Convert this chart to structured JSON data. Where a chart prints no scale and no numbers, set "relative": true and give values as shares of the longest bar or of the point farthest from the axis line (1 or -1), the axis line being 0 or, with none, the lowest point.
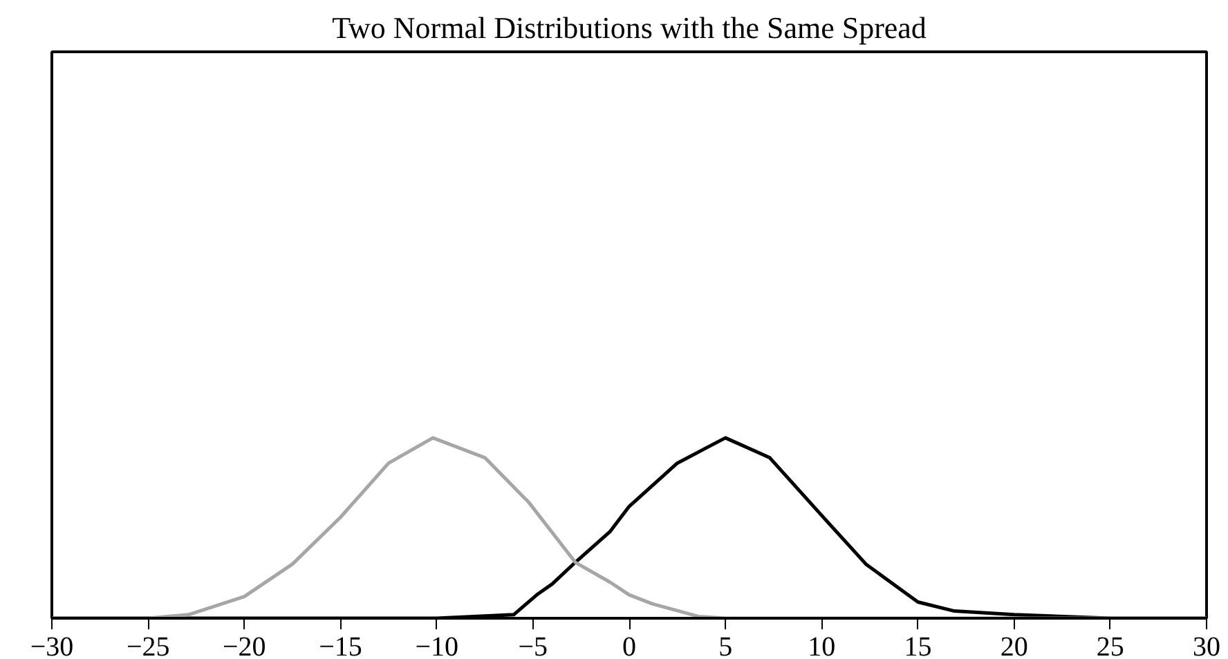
{
  "chart_data": {
    "type": "line",
    "title": "Two Normal Distributions with the Same Spread",
    "relative": true,
    "grid": false,
    "tick_labels": "x",
    "marker": "none",
    "line_style": "solid",
    "xlim": [
      -30,
      30
    ],
    "xticks": [
      {
        "value": -30,
        "label": "−30"
      },
      {
        "value": -25,
        "label": "−25"
      },
      {
        "value": -20,
        "label": "−20"
      },
      {
        "value": -15,
        "label": "−15"
      },
      {
        "value": -10,
        "label": "−10"
      },
      {
        "value": -5,
        "label": "−5"
      },
      0,
      5,
      10,
      15,
      20,
      25,
      30
    ],
    "series": [
      {
        "color": "#000000",
        "x": [
          -30,
          -10,
          -6,
          -4.8,
          -4,
          -2.8,
          -1,
          0,
          2.5,
          5,
          7.3,
          10,
          12.3,
          15,
          16.9,
          20,
          25,
          30
        ],
        "values": [
          0,
          0,
          0.02,
          0.13,
          0.19,
          0.31,
          0.48,
          0.62,
          0.86,
          1,
          0.89,
          0.57,
          0.3,
          0.09,
          0.04,
          0.02,
          0,
          0
        ]
      },
      {
        "color": "#a6a6a6",
        "x": [
          -30,
          -25,
          -22.9,
          -20,
          -17.5,
          -15,
          -12.5,
          -10.2,
          -7.5,
          -5.2,
          -2.8,
          -1,
          0,
          1.2,
          3.6,
          5,
          30
        ],
        "values": [
          0,
          0,
          0.02,
          0.12,
          0.3,
          0.56,
          0.86,
          1,
          0.89,
          0.64,
          0.31,
          0.2,
          0.13,
          0.08,
          0.01,
          0,
          0
        ]
      }
    ]
  }
}
